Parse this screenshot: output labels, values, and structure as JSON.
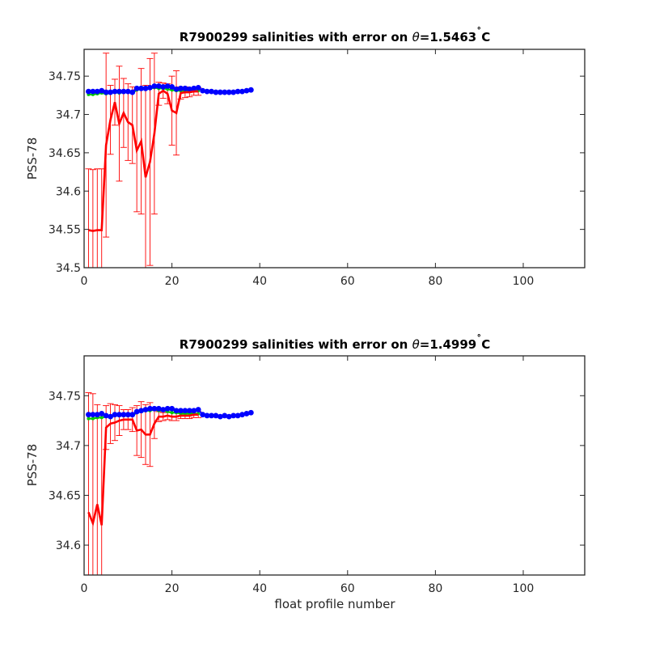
{
  "chart_data": [
    {
      "type": "line",
      "title_prefix": "R7900299 salinities with error on ",
      "title_theta": "θ",
      "title_value": "=1.5463",
      "title_degree": "˚",
      "title_unit": "C",
      "xlabel": "",
      "ylabel": "PSS-78",
      "xlim": [
        0,
        114
      ],
      "ylim": [
        34.5,
        34.785
      ],
      "xticks": [
        0,
        20,
        40,
        60,
        80,
        100
      ],
      "yticks": [
        34.5,
        34.55,
        34.6,
        34.65,
        34.7,
        34.75
      ],
      "xtick_labels": [
        "0",
        "20",
        "40",
        "60",
        "80",
        "100"
      ],
      "ytick_labels": [
        "34.5",
        "34.55",
        "34.6",
        "34.65",
        "34.7",
        "34.75"
      ],
      "colors": {
        "float": "#ff0000",
        "mapped": "#00cc00",
        "calibrated": "#0000ff",
        "error": "#ff0000"
      },
      "series": [
        {
          "role": "float",
          "x": [
            1,
            2,
            3,
            4,
            5,
            6,
            7,
            8,
            9,
            10,
            11,
            12,
            13,
            14,
            15,
            16,
            17,
            18,
            19,
            20,
            21,
            22,
            23,
            24,
            25,
            26
          ],
          "y": [
            34.549,
            34.548,
            34.549,
            34.549,
            34.66,
            34.693,
            34.716,
            34.688,
            34.702,
            34.69,
            34.686,
            34.653,
            34.665,
            34.618,
            34.638,
            34.675,
            34.727,
            34.731,
            34.727,
            34.705,
            34.702,
            34.728,
            34.729,
            34.729,
            34.73,
            34.73
          ],
          "err": [
            0.08,
            0.08,
            0.08,
            0.08,
            0.12,
            0.045,
            0.03,
            0.075,
            0.045,
            0.05,
            0.05,
            0.08,
            0.095,
            0.12,
            0.135,
            0.105,
            0.015,
            0.01,
            0.013,
            0.045,
            0.055,
            0.008,
            0.007,
            0.006,
            0.005,
            0.005
          ]
        },
        {
          "role": "mapped",
          "x": [
            1,
            2,
            3,
            4,
            5,
            6,
            7,
            8,
            9,
            10,
            11,
            12,
            13,
            14,
            15,
            16,
            17,
            18,
            19,
            20,
            21,
            22,
            23,
            24,
            25,
            26
          ],
          "y": [
            34.726,
            34.726,
            34.727,
            34.728,
            34.727,
            34.728,
            34.729,
            34.728,
            34.729,
            34.729,
            34.728,
            34.732,
            34.733,
            34.734,
            34.734,
            34.735,
            34.734,
            34.734,
            34.733,
            34.732,
            34.731,
            34.731,
            34.731,
            34.731,
            34.731,
            34.731
          ]
        },
        {
          "role": "calibrated",
          "x": [
            1,
            2,
            3,
            4,
            5,
            6,
            7,
            8,
            9,
            10,
            11,
            12,
            13,
            14,
            15,
            16,
            17,
            18,
            19,
            20,
            21,
            22,
            23,
            24,
            25,
            26,
            27,
            28,
            29,
            30,
            31,
            32,
            33,
            34,
            35,
            36,
            37,
            38
          ],
          "y": [
            34.73,
            34.73,
            34.73,
            34.731,
            34.729,
            34.729,
            34.73,
            34.73,
            34.73,
            34.73,
            34.729,
            34.734,
            34.734,
            34.734,
            34.735,
            34.737,
            34.737,
            34.736,
            34.737,
            34.736,
            34.733,
            34.734,
            34.734,
            34.733,
            34.734,
            34.735,
            34.731,
            34.73,
            34.73,
            34.729,
            34.729,
            34.729,
            34.729,
            34.729,
            34.73,
            34.73,
            34.731,
            34.732
          ]
        }
      ]
    },
    {
      "type": "line",
      "title_prefix": "R7900299 salinities with error on ",
      "title_theta": "θ",
      "title_value": "=1.4999",
      "title_degree": "˚",
      "title_unit": "C",
      "xlabel": "float profile number",
      "ylabel": "PSS-78",
      "xlim": [
        0,
        114
      ],
      "ylim": [
        34.57,
        34.79
      ],
      "xticks": [
        0,
        20,
        40,
        60,
        80,
        100
      ],
      "yticks": [
        34.6,
        34.65,
        34.7,
        34.75
      ],
      "xtick_labels": [
        "0",
        "20",
        "40",
        "60",
        "80",
        "100"
      ],
      "ytick_labels": [
        "34.6",
        "34.65",
        "34.7",
        "34.75"
      ],
      "colors": {
        "float": "#ff0000",
        "mapped": "#00cc00",
        "calibrated": "#0000ff",
        "error": "#ff0000"
      },
      "series": [
        {
          "role": "float",
          "x": [
            1,
            2,
            3,
            4,
            5,
            6,
            7,
            8,
            9,
            10,
            11,
            12,
            13,
            14,
            15,
            16,
            17,
            18,
            19,
            20,
            21,
            22,
            23,
            24,
            25,
            26
          ],
          "y": [
            34.633,
            34.622,
            34.641,
            34.62,
            34.718,
            34.722,
            34.723,
            34.725,
            34.726,
            34.726,
            34.726,
            34.715,
            34.716,
            34.711,
            34.711,
            34.722,
            34.729,
            34.729,
            34.73,
            34.729,
            34.729,
            34.73,
            34.73,
            34.73,
            34.731,
            34.731
          ],
          "err": [
            0.12,
            0.13,
            0.1,
            0.11,
            0.022,
            0.02,
            0.018,
            0.015,
            0.01,
            0.01,
            0.012,
            0.025,
            0.028,
            0.03,
            0.032,
            0.015,
            0.005,
            0.004,
            0.004,
            0.004,
            0.004,
            0.003,
            0.003,
            0.003,
            0.003,
            0.003
          ]
        },
        {
          "role": "mapped",
          "x": [
            1,
            2,
            3,
            4,
            5,
            6,
            7,
            8,
            9,
            10,
            11,
            12,
            13,
            14,
            15,
            16,
            17,
            18,
            19,
            20,
            21,
            22,
            23,
            24,
            25,
            26
          ],
          "y": [
            34.727,
            34.727,
            34.728,
            34.728,
            34.729,
            34.729,
            34.73,
            34.73,
            34.73,
            34.73,
            34.73,
            34.733,
            34.734,
            34.735,
            34.735,
            34.736,
            34.735,
            34.735,
            34.734,
            34.733,
            34.733,
            34.732,
            34.732,
            34.732,
            34.732,
            34.732
          ]
        },
        {
          "role": "calibrated",
          "x": [
            1,
            2,
            3,
            4,
            5,
            6,
            7,
            8,
            9,
            10,
            11,
            12,
            13,
            14,
            15,
            16,
            17,
            18,
            19,
            20,
            21,
            22,
            23,
            24,
            25,
            26,
            27,
            28,
            29,
            30,
            31,
            32,
            33,
            34,
            35,
            36,
            37,
            38
          ],
          "y": [
            34.731,
            34.731,
            34.731,
            34.732,
            34.73,
            34.729,
            34.731,
            34.731,
            34.731,
            34.731,
            34.731,
            34.734,
            34.735,
            34.736,
            34.737,
            34.737,
            34.737,
            34.736,
            34.737,
            34.737,
            34.735,
            34.735,
            34.735,
            34.735,
            34.735,
            34.736,
            34.731,
            34.73,
            34.73,
            34.73,
            34.729,
            34.73,
            34.729,
            34.73,
            34.73,
            34.731,
            34.732,
            34.733
          ]
        }
      ]
    }
  ]
}
